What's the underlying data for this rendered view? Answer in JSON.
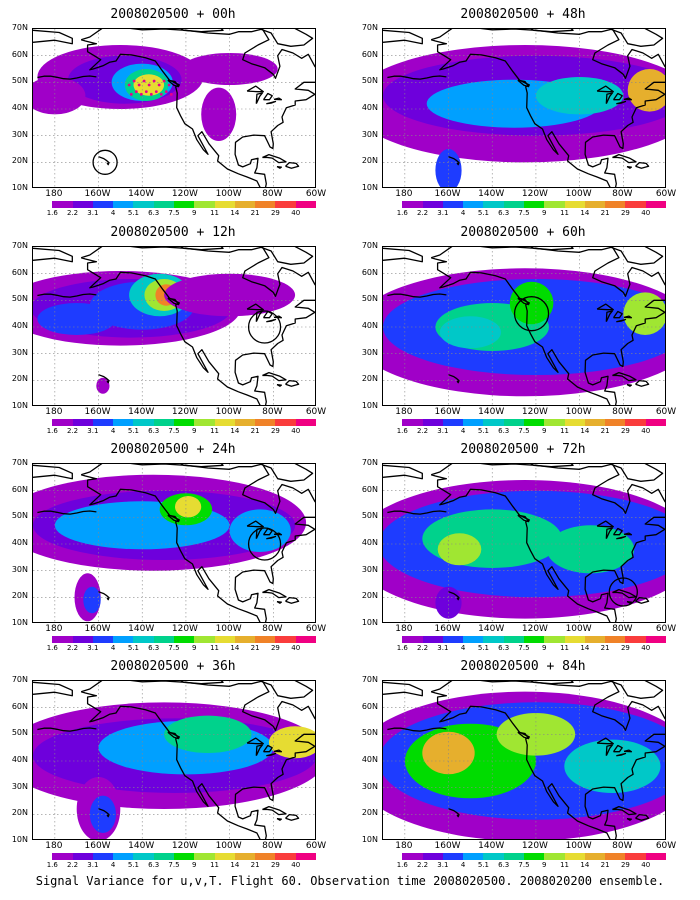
{
  "panels": [
    {
      "title": "2008020500 + 00h",
      "lead": 0
    },
    {
      "title": "2008020500 + 48h",
      "lead": 48
    },
    {
      "title": "2008020500 + 12h",
      "lead": 12
    },
    {
      "title": "2008020500 + 60h",
      "lead": 60
    },
    {
      "title": "2008020500 + 24h",
      "lead": 24
    },
    {
      "title": "2008020500 + 72h",
      "lead": 72
    },
    {
      "title": "2008020500 + 36h",
      "lead": 36
    },
    {
      "title": "2008020500 + 84h",
      "lead": 84
    }
  ],
  "axes": {
    "lat_labels": [
      "70N",
      "60N",
      "50N",
      "40N",
      "30N",
      "20N",
      "10N"
    ],
    "lon_labels": [
      "180",
      "160W",
      "140W",
      "120W",
      "100W",
      "80W",
      "60W"
    ],
    "lat_range": [
      10,
      70
    ],
    "lon_range": [
      -190,
      -60
    ]
  },
  "colorbar": {
    "labels": [
      "1.6",
      "2.2",
      "3.1",
      "4",
      "5.1",
      "6.3",
      "7.5",
      "9",
      "11",
      "14",
      "21",
      "29",
      "40"
    ],
    "colors": [
      "#ffffff",
      "#a000c8",
      "#6e00dc",
      "#1e3cff",
      "#00a0ff",
      "#00c8c8",
      "#00d28c",
      "#00dc00",
      "#a0e632",
      "#e6dc32",
      "#e6af2d",
      "#f08228",
      "#fa3c3c",
      "#f00082"
    ]
  },
  "caption": "Signal Variance for u,v,T. Flight 60. Observation time 2008020500. 2008020200 ensemble."
}
